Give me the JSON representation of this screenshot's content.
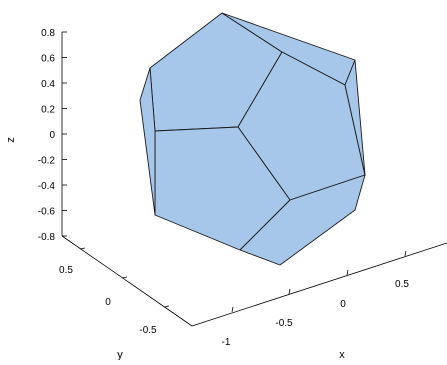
{
  "chart_data": {
    "type": "surface3d",
    "shape": "dodecahedron",
    "face_color": "#a6c6ea",
    "edge_color": "#1a1a1a",
    "axes": {
      "x": {
        "label": "x",
        "ticks": [
          "-1",
          "-0.5",
          "0",
          "0.5"
        ]
      },
      "y": {
        "label": "y",
        "ticks": [
          "-0.5",
          "0",
          "0.5"
        ]
      },
      "z": {
        "label": "z",
        "ticks": [
          "0.8",
          "0.6",
          "0.4",
          "0.2",
          "0",
          "-0.2",
          "-0.4",
          "-0.6",
          "-0.8"
        ]
      }
    }
  }
}
